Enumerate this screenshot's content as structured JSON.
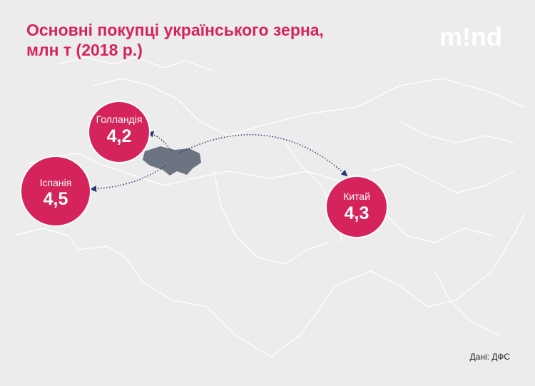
{
  "header": {
    "title_lines": [
      "Основні покупці українського зерна,",
      "млн т (2018 р.)"
    ],
    "logo": "m!nd"
  },
  "bubbles": [
    {
      "country": "Голландія",
      "value": "4,2"
    },
    {
      "country": "Іспанія",
      "value": "4,5"
    },
    {
      "country": "Китай",
      "value": "4,3"
    }
  ],
  "source": "Дані: ДФС"
}
